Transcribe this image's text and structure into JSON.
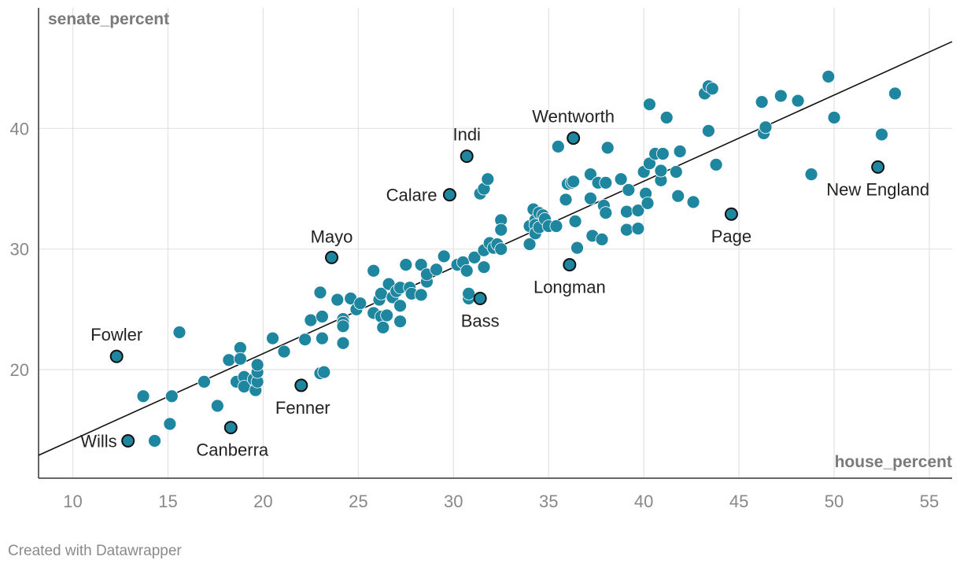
{
  "credit": "Created with Datawrapper",
  "chart_data": {
    "type": "scatter",
    "xlabel": "house_percent",
    "ylabel": "senate_percent",
    "xlim": [
      8.2,
      56.2
    ],
    "ylim": [
      11,
      50
    ],
    "x_ticks": [
      10,
      15,
      20,
      25,
      30,
      35,
      40,
      45,
      50,
      55
    ],
    "y_ticks": [
      20,
      30,
      40
    ],
    "grid": true,
    "point_color": "#1f86a0",
    "trendline": {
      "x": [
        8.2,
        56.2
      ],
      "y": [
        12.9,
        47.2
      ]
    },
    "points": [
      {
        "x": 13.7,
        "y": 17.8
      },
      {
        "x": 14.3,
        "y": 14.1
      },
      {
        "x": 15.1,
        "y": 15.5
      },
      {
        "x": 15.2,
        "y": 17.8
      },
      {
        "x": 15.6,
        "y": 23.1
      },
      {
        "x": 16.9,
        "y": 19.0
      },
      {
        "x": 17.6,
        "y": 17.0
      },
      {
        "x": 18.2,
        "y": 20.8
      },
      {
        "x": 18.6,
        "y": 19.0
      },
      {
        "x": 18.8,
        "y": 21.8
      },
      {
        "x": 18.8,
        "y": 20.9
      },
      {
        "x": 19.0,
        "y": 19.4
      },
      {
        "x": 19.0,
        "y": 18.6
      },
      {
        "x": 19.5,
        "y": 19.2
      },
      {
        "x": 19.6,
        "y": 18.3
      },
      {
        "x": 19.7,
        "y": 19.0
      },
      {
        "x": 19.7,
        "y": 19.8
      },
      {
        "x": 19.7,
        "y": 20.4
      },
      {
        "x": 20.5,
        "y": 22.6
      },
      {
        "x": 21.1,
        "y": 21.5
      },
      {
        "x": 22.2,
        "y": 22.5
      },
      {
        "x": 22.5,
        "y": 24.1
      },
      {
        "x": 23.0,
        "y": 26.4
      },
      {
        "x": 23.0,
        "y": 19.7
      },
      {
        "x": 23.1,
        "y": 22.6
      },
      {
        "x": 23.1,
        "y": 24.4
      },
      {
        "x": 23.2,
        "y": 19.8
      },
      {
        "x": 23.9,
        "y": 25.8
      },
      {
        "x": 24.2,
        "y": 24.2
      },
      {
        "x": 24.2,
        "y": 23.9
      },
      {
        "x": 24.2,
        "y": 23.6
      },
      {
        "x": 24.2,
        "y": 22.2
      },
      {
        "x": 24.6,
        "y": 25.9
      },
      {
        "x": 24.9,
        "y": 25.0
      },
      {
        "x": 25.1,
        "y": 25.5
      },
      {
        "x": 25.8,
        "y": 28.2
      },
      {
        "x": 25.8,
        "y": 24.7
      },
      {
        "x": 26.1,
        "y": 25.8
      },
      {
        "x": 26.2,
        "y": 26.3
      },
      {
        "x": 26.2,
        "y": 24.4
      },
      {
        "x": 26.3,
        "y": 23.5
      },
      {
        "x": 26.5,
        "y": 24.5
      },
      {
        "x": 26.6,
        "y": 27.1
      },
      {
        "x": 26.8,
        "y": 26.0
      },
      {
        "x": 27.0,
        "y": 26.5
      },
      {
        "x": 27.2,
        "y": 26.8
      },
      {
        "x": 27.2,
        "y": 25.3
      },
      {
        "x": 27.2,
        "y": 24.0
      },
      {
        "x": 27.5,
        "y": 28.7
      },
      {
        "x": 27.7,
        "y": 26.8
      },
      {
        "x": 27.8,
        "y": 26.3
      },
      {
        "x": 28.3,
        "y": 26.2
      },
      {
        "x": 28.3,
        "y": 28.7
      },
      {
        "x": 28.6,
        "y": 27.3
      },
      {
        "x": 28.6,
        "y": 27.9
      },
      {
        "x": 29.1,
        "y": 28.3
      },
      {
        "x": 29.5,
        "y": 29.4
      },
      {
        "x": 30.2,
        "y": 28.7
      },
      {
        "x": 30.5,
        "y": 28.9
      },
      {
        "x": 30.7,
        "y": 28.2
      },
      {
        "x": 30.8,
        "y": 25.9
      },
      {
        "x": 30.8,
        "y": 26.3
      },
      {
        "x": 31.1,
        "y": 29.3
      },
      {
        "x": 31.4,
        "y": 34.6
      },
      {
        "x": 31.6,
        "y": 35.0
      },
      {
        "x": 31.6,
        "y": 29.9
      },
      {
        "x": 31.6,
        "y": 28.5
      },
      {
        "x": 31.8,
        "y": 35.8
      },
      {
        "x": 31.9,
        "y": 30.5
      },
      {
        "x": 32.1,
        "y": 30.1
      },
      {
        "x": 32.3,
        "y": 30.4
      },
      {
        "x": 32.5,
        "y": 32.4
      },
      {
        "x": 32.5,
        "y": 31.6
      },
      {
        "x": 32.5,
        "y": 30.0
      },
      {
        "x": 34.0,
        "y": 30.4
      },
      {
        "x": 34.0,
        "y": 31.9
      },
      {
        "x": 34.2,
        "y": 33.3
      },
      {
        "x": 34.3,
        "y": 32.4
      },
      {
        "x": 34.3,
        "y": 32.0
      },
      {
        "x": 34.3,
        "y": 31.3
      },
      {
        "x": 34.5,
        "y": 33.0
      },
      {
        "x": 34.5,
        "y": 31.8
      },
      {
        "x": 34.7,
        "y": 32.8
      },
      {
        "x": 34.8,
        "y": 32.5
      },
      {
        "x": 35.0,
        "y": 31.9
      },
      {
        "x": 35.4,
        "y": 31.9
      },
      {
        "x": 35.5,
        "y": 38.5
      },
      {
        "x": 35.9,
        "y": 34.1
      },
      {
        "x": 36.0,
        "y": 35.4
      },
      {
        "x": 36.2,
        "y": 35.5
      },
      {
        "x": 36.3,
        "y": 35.6
      },
      {
        "x": 36.4,
        "y": 32.3
      },
      {
        "x": 36.5,
        "y": 30.1
      },
      {
        "x": 37.2,
        "y": 36.2
      },
      {
        "x": 37.2,
        "y": 34.2
      },
      {
        "x": 37.3,
        "y": 31.1
      },
      {
        "x": 37.6,
        "y": 35.5
      },
      {
        "x": 37.8,
        "y": 30.8
      },
      {
        "x": 37.9,
        "y": 33.6
      },
      {
        "x": 38.0,
        "y": 33.0
      },
      {
        "x": 38.0,
        "y": 35.5
      },
      {
        "x": 38.1,
        "y": 38.4
      },
      {
        "x": 38.8,
        "y": 35.8
      },
      {
        "x": 39.1,
        "y": 33.1
      },
      {
        "x": 39.1,
        "y": 31.6
      },
      {
        "x": 39.2,
        "y": 34.9
      },
      {
        "x": 39.7,
        "y": 31.7
      },
      {
        "x": 39.7,
        "y": 33.2
      },
      {
        "x": 40.0,
        "y": 36.4
      },
      {
        "x": 40.1,
        "y": 34.6
      },
      {
        "x": 40.2,
        "y": 33.8
      },
      {
        "x": 40.3,
        "y": 42.0
      },
      {
        "x": 40.3,
        "y": 37.1
      },
      {
        "x": 40.6,
        "y": 37.9
      },
      {
        "x": 40.9,
        "y": 35.7
      },
      {
        "x": 40.9,
        "y": 36.5
      },
      {
        "x": 41.0,
        "y": 37.9
      },
      {
        "x": 41.2,
        "y": 40.9
      },
      {
        "x": 41.7,
        "y": 36.4
      },
      {
        "x": 41.8,
        "y": 34.4
      },
      {
        "x": 41.9,
        "y": 38.1
      },
      {
        "x": 42.6,
        "y": 33.9
      },
      {
        "x": 43.2,
        "y": 42.9
      },
      {
        "x": 43.4,
        "y": 39.8
      },
      {
        "x": 43.4,
        "y": 43.5
      },
      {
        "x": 43.6,
        "y": 43.3
      },
      {
        "x": 43.8,
        "y": 37.0
      },
      {
        "x": 46.2,
        "y": 42.2
      },
      {
        "x": 46.3,
        "y": 39.6
      },
      {
        "x": 46.4,
        "y": 40.1
      },
      {
        "x": 47.2,
        "y": 42.7
      },
      {
        "x": 48.1,
        "y": 42.3
      },
      {
        "x": 48.8,
        "y": 36.2
      },
      {
        "x": 49.7,
        "y": 44.3
      },
      {
        "x": 50.0,
        "y": 40.9
      },
      {
        "x": 52.5,
        "y": 39.5
      },
      {
        "x": 53.2,
        "y": 42.9
      }
    ],
    "labeled_points": [
      {
        "name": "Wills",
        "x": 12.9,
        "y": 14.1,
        "anchor": "end",
        "dx": -14,
        "dy": 8
      },
      {
        "name": "Fowler",
        "x": 12.3,
        "y": 21.1,
        "anchor": "middle",
        "dx": 0,
        "dy": -20
      },
      {
        "name": "Canberra",
        "x": 18.3,
        "y": 15.2,
        "anchor": "middle",
        "dx": 2,
        "dy": 36
      },
      {
        "name": "Fenner",
        "x": 22.0,
        "y": 18.7,
        "anchor": "middle",
        "dx": 2,
        "dy": 36
      },
      {
        "name": "Mayo",
        "x": 23.6,
        "y": 29.3,
        "anchor": "middle",
        "dx": 0,
        "dy": -19
      },
      {
        "name": "Calare",
        "x": 29.8,
        "y": 34.5,
        "anchor": "end",
        "dx": -16,
        "dy": 8
      },
      {
        "name": "Indi",
        "x": 30.7,
        "y": 37.7,
        "anchor": "middle",
        "dx": 0,
        "dy": -20
      },
      {
        "name": "Bass",
        "x": 31.4,
        "y": 25.9,
        "anchor": "middle",
        "dx": 0,
        "dy": 36
      },
      {
        "name": "Wentworth",
        "x": 36.3,
        "y": 39.2,
        "anchor": "middle",
        "dx": 0,
        "dy": -20
      },
      {
        "name": "Longman",
        "x": 36.1,
        "y": 28.7,
        "anchor": "middle",
        "dx": 0,
        "dy": 36
      },
      {
        "name": "Page",
        "x": 44.6,
        "y": 32.9,
        "anchor": "middle",
        "dx": 0,
        "dy": 36
      },
      {
        "name": "New England",
        "x": 52.3,
        "y": 36.8,
        "anchor": "middle",
        "dx": 0,
        "dy": 36
      }
    ]
  }
}
